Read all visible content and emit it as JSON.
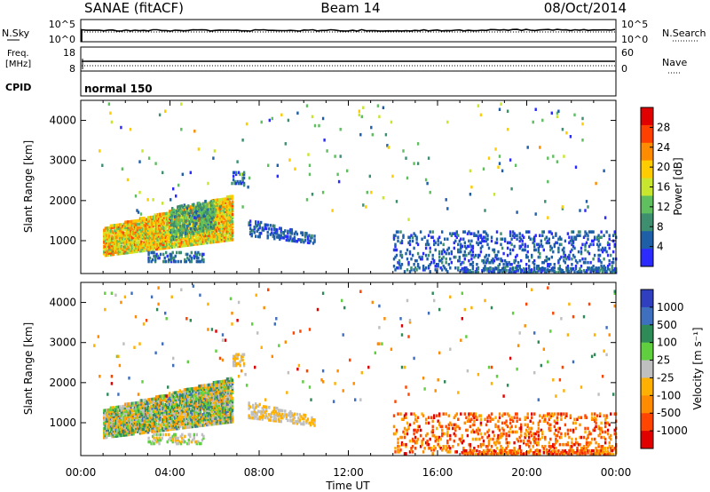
{
  "header": {
    "station": "SANAE (fitACF)",
    "beam": "Beam 14",
    "date": "08/Oct/2014"
  },
  "noise_panel": {
    "left_label": "N.Sky",
    "right_label": "N.Search",
    "left_ticks": [
      "10^5",
      "10^0"
    ],
    "right_ticks": [
      "10^5",
      "10^0"
    ]
  },
  "freq_panel": {
    "left_label_1": "Freq.",
    "left_label_2": "[MHz]",
    "right_label": "Nave",
    "left_ticks": [
      "18",
      "8"
    ],
    "right_ticks": [
      "60",
      "0"
    ]
  },
  "cpid_panel": {
    "label": "CPID",
    "text": "normal 150"
  },
  "colors": {
    "power_scale": [
      "#2b2bff",
      "#1f5fa8",
      "#3d8f6f",
      "#5fbf5f",
      "#c8e62e",
      "#ffcc00",
      "#ff8c00",
      "#ff4000",
      "#e00000"
    ],
    "velocity_scale": [
      "#2f3fbf",
      "#3f6fbf",
      "#2e8b57",
      "#5fcf3f",
      "#bfbfbf",
      "#ffb000",
      "#ff8c00",
      "#ff4500",
      "#e00000"
    ]
  },
  "chart_data": [
    {
      "type": "heatmap",
      "name": "power",
      "ylabel": "Slant Range [km]",
      "yticks": [
        "1000",
        "2000",
        "3000",
        "4000"
      ],
      "ylim": [
        180,
        4500
      ],
      "xlim_hours": [
        0,
        24
      ],
      "colorbar_label": "Power [dB]",
      "colorbar_ticks": [
        "4",
        "8",
        "12",
        "16",
        "20",
        "24",
        "28"
      ],
      "colorbar_range": [
        0,
        32
      ],
      "regions": [
        {
          "t0": 1.0,
          "t1": 6.8,
          "r0": 600,
          "r1": 1300,
          "r0_end": 1000,
          "r1_end": 2100,
          "vmin": 12,
          "vmax": 26,
          "density": 0.85
        },
        {
          "t0": 4.0,
          "t1": 6.0,
          "r0": 1000,
          "r1": 1800,
          "r0_end": 1300,
          "r1_end": 2000,
          "vmin": 6,
          "vmax": 14,
          "density": 0.5
        },
        {
          "t0": 6.8,
          "t1": 7.3,
          "r0": 2400,
          "r1": 2700,
          "vmin": 2,
          "vmax": 10,
          "density": 0.5
        },
        {
          "t0": 7.5,
          "t1": 10.5,
          "r0": 1100,
          "r1": 1500,
          "r0_end": 900,
          "r1_end": 1100,
          "vmin": 2,
          "vmax": 8,
          "density": 0.4
        },
        {
          "t0": 3.0,
          "t1": 5.5,
          "r0": 450,
          "r1": 700,
          "vmin": 3,
          "vmax": 9,
          "density": 0.35
        },
        {
          "t0": 14.0,
          "t1": 24.0,
          "r0": 200,
          "r1": 1200,
          "vmin": 2,
          "vmax": 8,
          "density": 0.18
        },
        {
          "t0": 17.0,
          "t1": 24.0,
          "r0": 180,
          "r1": 300,
          "vmin": 2,
          "vmax": 10,
          "density": 0.5
        },
        {
          "t0": 0.5,
          "t1": 24.0,
          "r0": 1500,
          "r1": 4400,
          "vmin": 2,
          "vmax": 22,
          "density": 0.008
        }
      ]
    },
    {
      "type": "heatmap",
      "name": "velocity",
      "ylabel": "Slant Range [km]",
      "yticks": [
        "1000",
        "2000",
        "3000",
        "4000"
      ],
      "ylim": [
        180,
        4500
      ],
      "xlabel": "Time UT",
      "xticks": [
        "00:00",
        "04:00",
        "08:00",
        "12:00",
        "16:00",
        "20:00",
        "00:00"
      ],
      "xlim_hours": [
        0,
        24
      ],
      "colorbar_label": "Velocity [m s⁻¹]",
      "colorbar_ticks": [
        "1000",
        "500",
        "100",
        "25",
        "-25",
        "-100",
        "-500",
        "-1000"
      ],
      "regions": [
        {
          "t0": 1.0,
          "t1": 6.8,
          "r0": 600,
          "r1": 1300,
          "r0_end": 1000,
          "r1_end": 2100,
          "vmin": 1,
          "vmax": 6,
          "density": 0.85
        },
        {
          "t0": 6.8,
          "t1": 7.3,
          "r0": 2400,
          "r1": 2700,
          "vmin": 4,
          "vmax": 5,
          "density": 0.5
        },
        {
          "t0": 7.5,
          "t1": 10.5,
          "r0": 1100,
          "r1": 1500,
          "r0_end": 900,
          "r1_end": 1100,
          "vmin": 4,
          "vmax": 5,
          "density": 0.4
        },
        {
          "t0": 3.0,
          "t1": 5.5,
          "r0": 450,
          "r1": 700,
          "vmin": 3,
          "vmax": 5,
          "density": 0.35
        },
        {
          "t0": 14.0,
          "t1": 24.0,
          "r0": 200,
          "r1": 1200,
          "vmin": 5,
          "vmax": 8,
          "density": 0.18
        },
        {
          "t0": 17.0,
          "t1": 24.0,
          "r0": 180,
          "r1": 300,
          "vmin": 5,
          "vmax": 8,
          "density": 0.5
        },
        {
          "t0": 0.5,
          "t1": 24.0,
          "r0": 1500,
          "r1": 4400,
          "vmin": 1,
          "vmax": 8,
          "density": 0.008
        }
      ]
    }
  ]
}
